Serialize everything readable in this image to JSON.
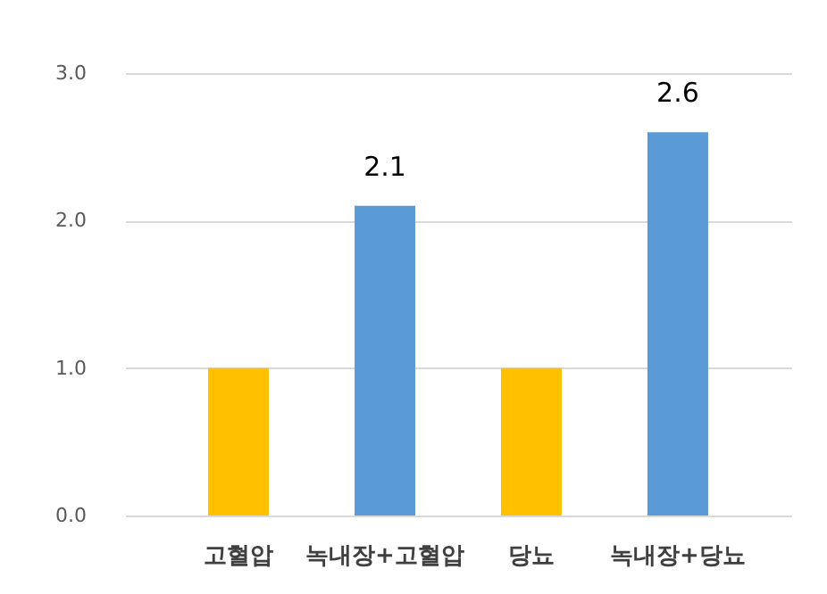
{
  "chart_data": {
    "type": "bar",
    "categories": [
      "고혈압",
      "녹내장+고혈압",
      "당뇨",
      "녹내장+당뇨"
    ],
    "values": [
      1.0,
      2.1,
      1.0,
      2.6
    ],
    "colors": [
      "#ffc000",
      "#5b9bd5",
      "#ffc000",
      "#5b9bd5"
    ],
    "value_labels": [
      null,
      "2.1",
      null,
      "2.6"
    ],
    "ylim": [
      0,
      3
    ],
    "yticks": [
      {
        "value": 0,
        "label": "0.0"
      },
      {
        "value": 1,
        "label": "1.0"
      },
      {
        "value": 2,
        "label": "2.0"
      },
      {
        "value": 3,
        "label": "3.0"
      }
    ],
    "grid": "y"
  }
}
